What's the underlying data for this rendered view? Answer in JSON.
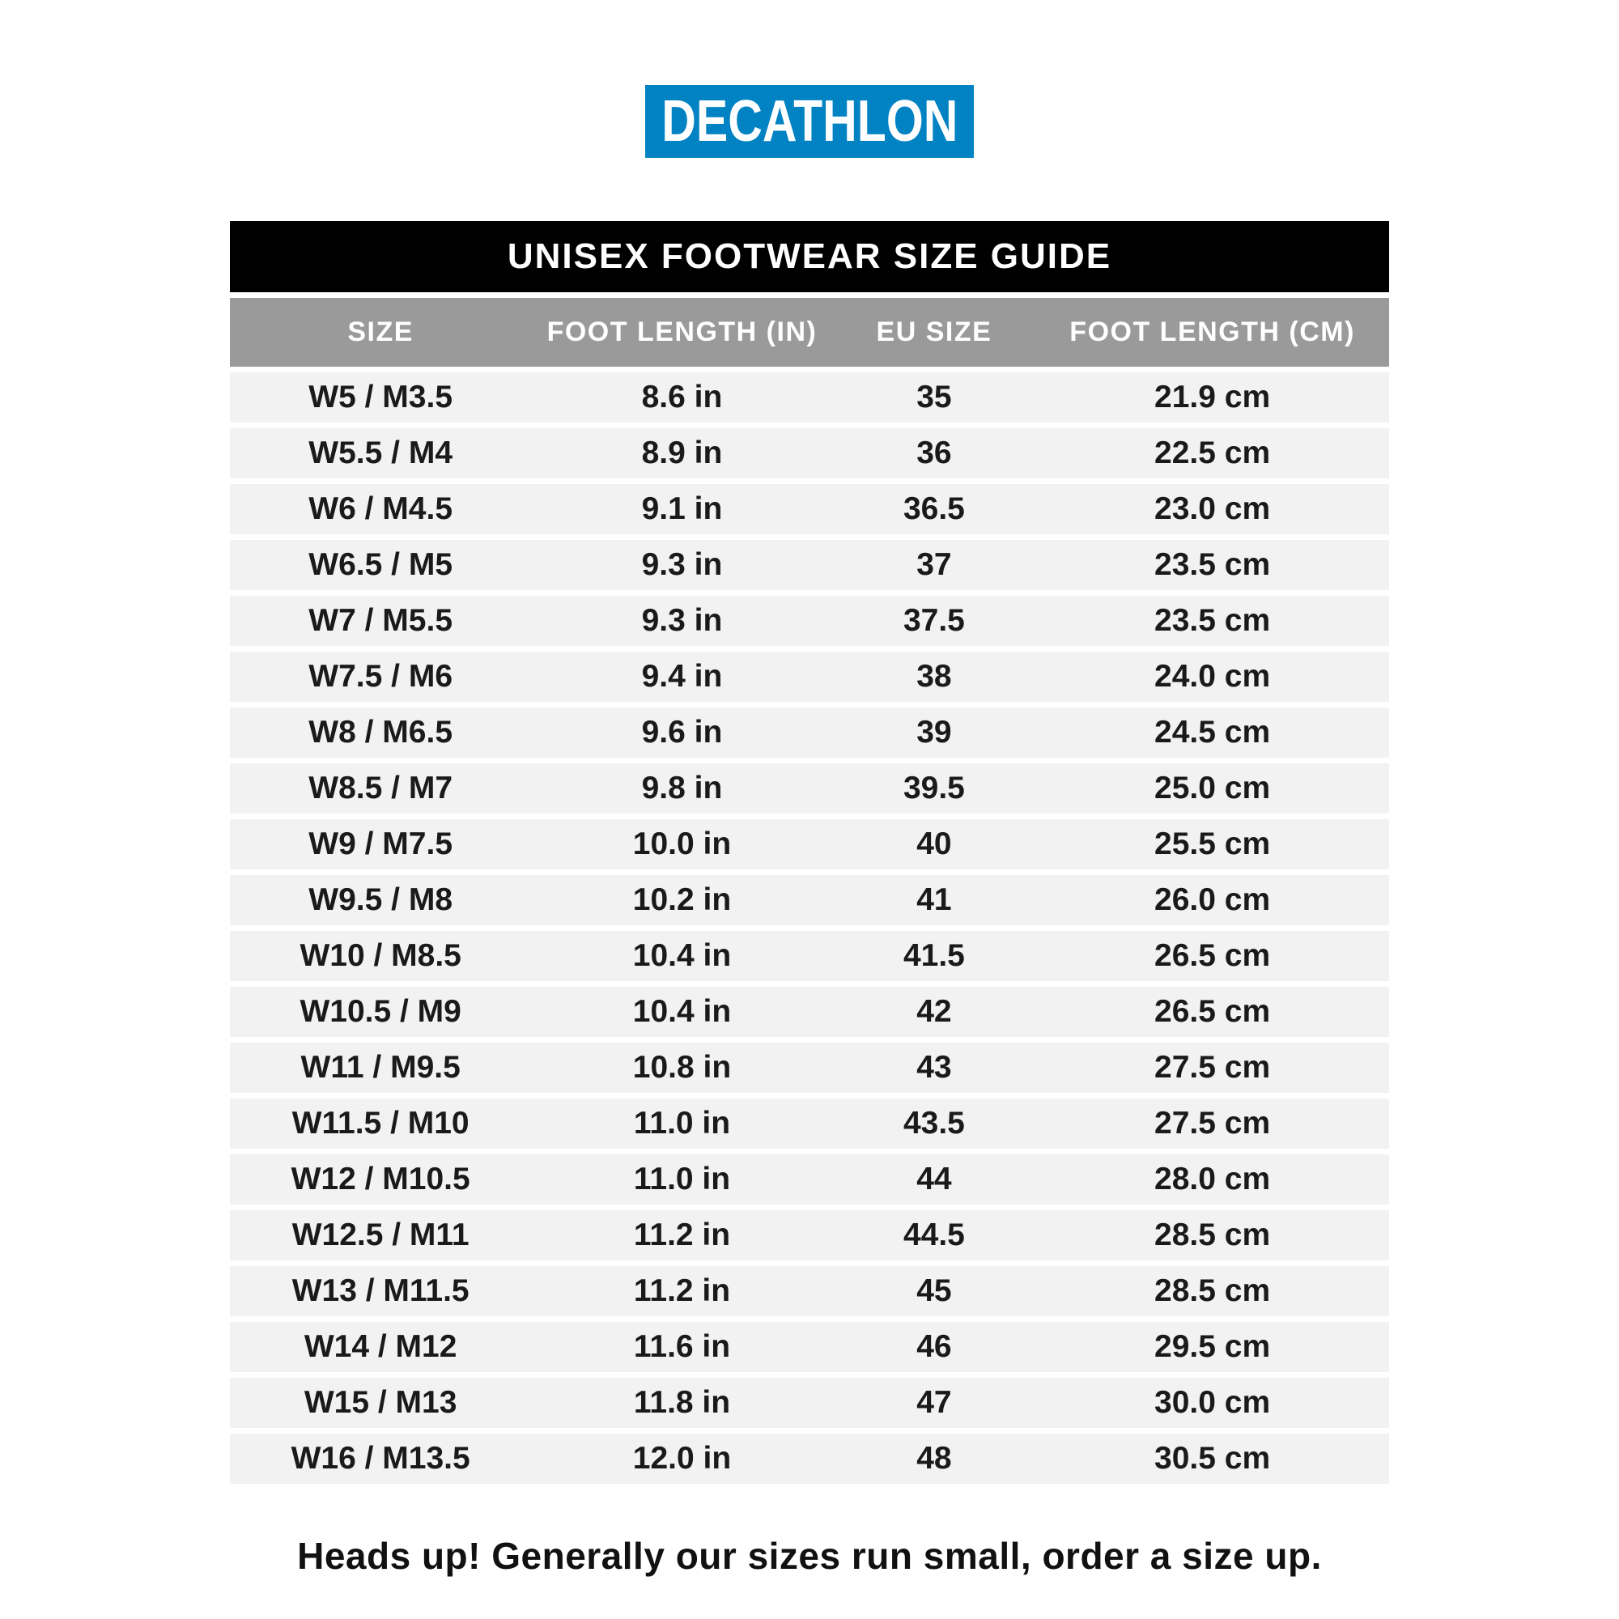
{
  "brand": {
    "logo_text": "DECATHLON"
  },
  "title": "UNISEX FOOTWEAR SIZE GUIDE",
  "table": {
    "columns": [
      "SIZE",
      "FOOT LENGTH (IN)",
      "EU SIZE",
      "FOOT LENGTH (CM)"
    ],
    "rows": [
      [
        "W5 / M3.5",
        "8.6 in",
        "35",
        "21.9 cm"
      ],
      [
        "W5.5 / M4",
        "8.9 in",
        "36",
        "22.5 cm"
      ],
      [
        "W6 / M4.5",
        "9.1 in",
        "36.5",
        "23.0 cm"
      ],
      [
        "W6.5 / M5",
        "9.3 in",
        "37",
        "23.5 cm"
      ],
      [
        "W7 / M5.5",
        "9.3 in",
        "37.5",
        "23.5 cm"
      ],
      [
        "W7.5 / M6",
        "9.4 in",
        "38",
        "24.0 cm"
      ],
      [
        "W8 / M6.5",
        "9.6 in",
        "39",
        "24.5 cm"
      ],
      [
        "W8.5 / M7",
        "9.8 in",
        "39.5",
        "25.0 cm"
      ],
      [
        "W9 / M7.5",
        "10.0 in",
        "40",
        "25.5 cm"
      ],
      [
        "W9.5 / M8",
        "10.2 in",
        "41",
        "26.0 cm"
      ],
      [
        "W10 / M8.5",
        "10.4 in",
        "41.5",
        "26.5 cm"
      ],
      [
        "W10.5 / M9",
        "10.4 in",
        "42",
        "26.5 cm"
      ],
      [
        "W11 / M9.5",
        "10.8 in",
        "43",
        "27.5 cm"
      ],
      [
        "W11.5 / M10",
        "11.0 in",
        "43.5",
        "27.5 cm"
      ],
      [
        "W12 / M10.5",
        "11.0 in",
        "44",
        "28.0 cm"
      ],
      [
        "W12.5 / M11",
        "11.2 in",
        "44.5",
        "28.5 cm"
      ],
      [
        "W13 / M11.5",
        "11.2 in",
        "45",
        "28.5 cm"
      ],
      [
        "W14 / M12",
        "11.6 in",
        "46",
        "29.5 cm"
      ],
      [
        "W15 / M13",
        "11.8 in",
        "47",
        "30.0 cm"
      ],
      [
        "W16 / M13.5",
        "12.0 in",
        "48",
        "30.5 cm"
      ]
    ]
  },
  "footer_note": "Heads up! Generally our sizes run small, order a size up.",
  "colors": {
    "brand_blue": "#0082c3",
    "title_bar_bg": "#000000",
    "header_bg": "#9a9a9a",
    "row_bg": "#f2f2f2",
    "page_bg": "#ffffff",
    "text": "#1a1a1a"
  }
}
